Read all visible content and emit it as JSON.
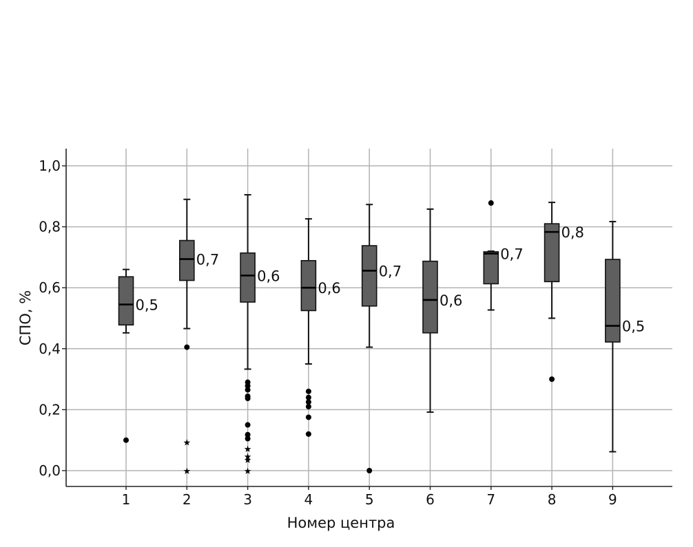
{
  "chart_data": {
    "type": "box",
    "xlabel": "Номер центра",
    "ylabel": "СПО, %",
    "ylim": [
      -0.055,
      1.06
    ],
    "y_ticks": [
      "0,0",
      "0,2",
      "0,4",
      "0,6",
      "0,8",
      "1,0"
    ],
    "y_tick_values": [
      0.0,
      0.2,
      0.4,
      0.6,
      0.8,
      1.0
    ],
    "categories": [
      "1",
      "2",
      "3",
      "4",
      "5",
      "6",
      "7",
      "8",
      "9"
    ],
    "grid": true,
    "box_color": "#5f5f5f",
    "boxes": [
      {
        "category": "1",
        "whisker_low": 0.452,
        "q1": 0.478,
        "median": 0.545,
        "q3": 0.636,
        "whisker_high": 0.66,
        "median_label": "0,5",
        "outliers": [
          0.1
        ],
        "extremes": []
      },
      {
        "category": "2",
        "whisker_low": 0.466,
        "q1": 0.624,
        "median": 0.694,
        "q3": 0.755,
        "whisker_high": 0.89,
        "median_label": "0,7",
        "outliers": [
          0.405
        ],
        "extremes": [
          0.094,
          0.0
        ]
      },
      {
        "category": "3",
        "whisker_low": 0.333,
        "q1": 0.553,
        "median": 0.64,
        "q3": 0.714,
        "whisker_high": 0.905,
        "median_label": "0,6",
        "outliers": [
          0.29,
          0.278,
          0.265,
          0.244,
          0.237,
          0.15,
          0.118,
          0.105
        ],
        "extremes": [
          0.072,
          0.047,
          0.036,
          0.0
        ]
      },
      {
        "category": "4",
        "whisker_low": 0.35,
        "q1": 0.525,
        "median": 0.6,
        "q3": 0.689,
        "whisker_high": 0.826,
        "median_label": "0,6",
        "outliers": [
          0.26,
          0.24,
          0.225,
          0.21,
          0.175,
          0.12
        ],
        "extremes": []
      },
      {
        "category": "5",
        "whisker_low": 0.405,
        "q1": 0.54,
        "median": 0.656,
        "q3": 0.738,
        "whisker_high": 0.873,
        "median_label": "0,7",
        "outliers": [
          0.0
        ],
        "extremes": []
      },
      {
        "category": "6",
        "whisker_low": 0.192,
        "q1": 0.452,
        "median": 0.56,
        "q3": 0.687,
        "whisker_high": 0.858,
        "median_label": "0,6",
        "outliers": [],
        "extremes": []
      },
      {
        "category": "7",
        "whisker_low": 0.527,
        "q1": 0.613,
        "median": 0.712,
        "q3": 0.718,
        "whisker_high": 0.72,
        "median_label": "0,7",
        "outliers": [
          0.878
        ],
        "extremes": []
      },
      {
        "category": "8",
        "whisker_low": 0.5,
        "q1": 0.62,
        "median": 0.783,
        "q3": 0.81,
        "whisker_high": 0.88,
        "median_label": "0,8",
        "outliers": [
          0.3
        ],
        "extremes": []
      },
      {
        "category": "9",
        "whisker_low": 0.062,
        "q1": 0.422,
        "median": 0.475,
        "q3": 0.693,
        "whisker_high": 0.817,
        "median_label": "0,5",
        "outliers": [],
        "extremes": []
      }
    ]
  }
}
